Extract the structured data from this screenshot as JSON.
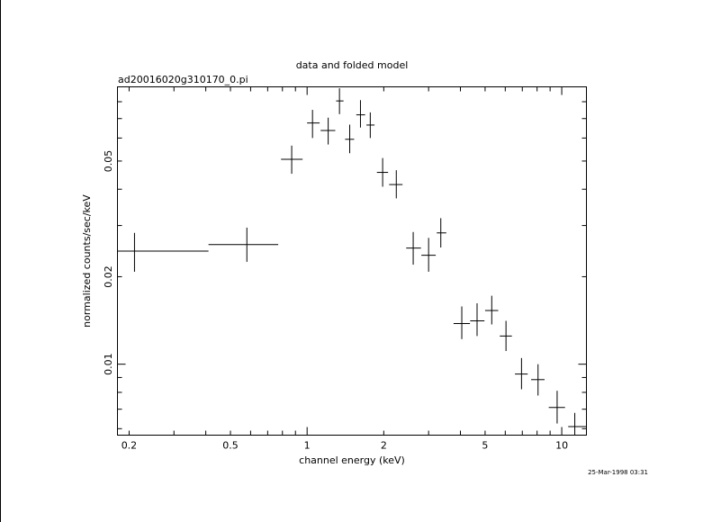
{
  "header": {
    "title": "data and folded model",
    "filename": "ad20016020g310170_0.pi"
  },
  "footer": {
    "timestamp": "25-Mar-1998 03:31"
  },
  "chart_data": {
    "type": "scatter",
    "title": "data and folded model",
    "subtitle": "ad20016020g310170_0.pi",
    "xlabel": "channel energy (keV)",
    "ylabel": "normalized counts/sec/keV",
    "x_scale": "log",
    "y_scale": "log",
    "xlim": [
      0.18,
      12.5
    ],
    "ylim": [
      0.0057,
      0.09
    ],
    "grid": false,
    "x_ticks": [
      {
        "value": 0.2,
        "label": "0.2"
      },
      {
        "value": 0.5,
        "label": "0.5"
      },
      {
        "value": 1,
        "label": "1"
      },
      {
        "value": 2,
        "label": "2"
      },
      {
        "value": 5,
        "label": "5"
      },
      {
        "value": 10,
        "label": "10"
      }
    ],
    "y_ticks": [
      {
        "value": 0.01,
        "label": "0.01"
      },
      {
        "value": 0.02,
        "label": "0.02"
      },
      {
        "value": 0.05,
        "label": "0.05"
      }
    ],
    "series": [
      {
        "points": [
          {
            "x": 0.21,
            "y": 0.0245,
            "xlo": 0.18,
            "xhi": 0.41,
            "ylo": 0.0208,
            "yhi": 0.0283
          },
          {
            "x": 0.58,
            "y": 0.0258,
            "xlo": 0.41,
            "xhi": 0.77,
            "ylo": 0.0225,
            "yhi": 0.0295
          },
          {
            "x": 0.87,
            "y": 0.0507,
            "xlo": 0.79,
            "xhi": 0.96,
            "ylo": 0.0452,
            "yhi": 0.0565
          },
          {
            "x": 1.05,
            "y": 0.0676,
            "xlo": 1.0,
            "xhi": 1.12,
            "ylo": 0.06,
            "yhi": 0.075
          },
          {
            "x": 1.21,
            "y": 0.0637,
            "xlo": 1.13,
            "xhi": 1.29,
            "ylo": 0.057,
            "yhi": 0.0705
          },
          {
            "x": 1.34,
            "y": 0.0805,
            "xlo": 1.3,
            "xhi": 1.39,
            "ylo": 0.0725,
            "yhi": 0.089
          },
          {
            "x": 1.47,
            "y": 0.0594,
            "xlo": 1.41,
            "xhi": 1.53,
            "ylo": 0.0532,
            "yhi": 0.0667
          },
          {
            "x": 1.62,
            "y": 0.0721,
            "xlo": 1.56,
            "xhi": 1.69,
            "ylo": 0.0652,
            "yhi": 0.081
          },
          {
            "x": 1.77,
            "y": 0.0665,
            "xlo": 1.71,
            "xhi": 1.84,
            "ylo": 0.06,
            "yhi": 0.0735
          },
          {
            "x": 1.98,
            "y": 0.0457,
            "xlo": 1.88,
            "xhi": 2.08,
            "ylo": 0.0408,
            "yhi": 0.0512
          },
          {
            "x": 2.24,
            "y": 0.0415,
            "xlo": 2.1,
            "xhi": 2.37,
            "ylo": 0.0372,
            "yhi": 0.0465
          },
          {
            "x": 2.61,
            "y": 0.0251,
            "xlo": 2.45,
            "xhi": 2.8,
            "ylo": 0.022,
            "yhi": 0.0285
          },
          {
            "x": 3.0,
            "y": 0.0237,
            "xlo": 2.81,
            "xhi": 3.2,
            "ylo": 0.0208,
            "yhi": 0.0272
          },
          {
            "x": 3.35,
            "y": 0.0283,
            "xlo": 3.23,
            "xhi": 3.52,
            "ylo": 0.0252,
            "yhi": 0.0318
          },
          {
            "x": 4.05,
            "y": 0.0138,
            "xlo": 3.76,
            "xhi": 4.36,
            "ylo": 0.0122,
            "yhi": 0.0158
          },
          {
            "x": 4.65,
            "y": 0.0141,
            "xlo": 4.37,
            "xhi": 4.97,
            "ylo": 0.0125,
            "yhi": 0.0162
          },
          {
            "x": 5.31,
            "y": 0.0153,
            "xlo": 5.0,
            "xhi": 5.63,
            "ylo": 0.0137,
            "yhi": 0.0172
          },
          {
            "x": 6.04,
            "y": 0.0125,
            "xlo": 5.71,
            "xhi": 6.37,
            "ylo": 0.0111,
            "yhi": 0.0141
          },
          {
            "x": 6.95,
            "y": 0.00925,
            "xlo": 6.55,
            "xhi": 7.35,
            "ylo": 0.0082,
            "yhi": 0.0105
          },
          {
            "x": 8.07,
            "y": 0.00885,
            "xlo": 7.58,
            "xhi": 8.56,
            "ylo": 0.0078,
            "yhi": 0.01
          },
          {
            "x": 9.59,
            "y": 0.0071,
            "xlo": 8.89,
            "xhi": 10.3,
            "ylo": 0.00625,
            "yhi": 0.0081
          },
          {
            "x": 11.25,
            "y": 0.0061,
            "xlo": 10.6,
            "xhi": 12.5,
            "ylo": 0.0057,
            "yhi": 0.0068
          }
        ]
      }
    ]
  }
}
